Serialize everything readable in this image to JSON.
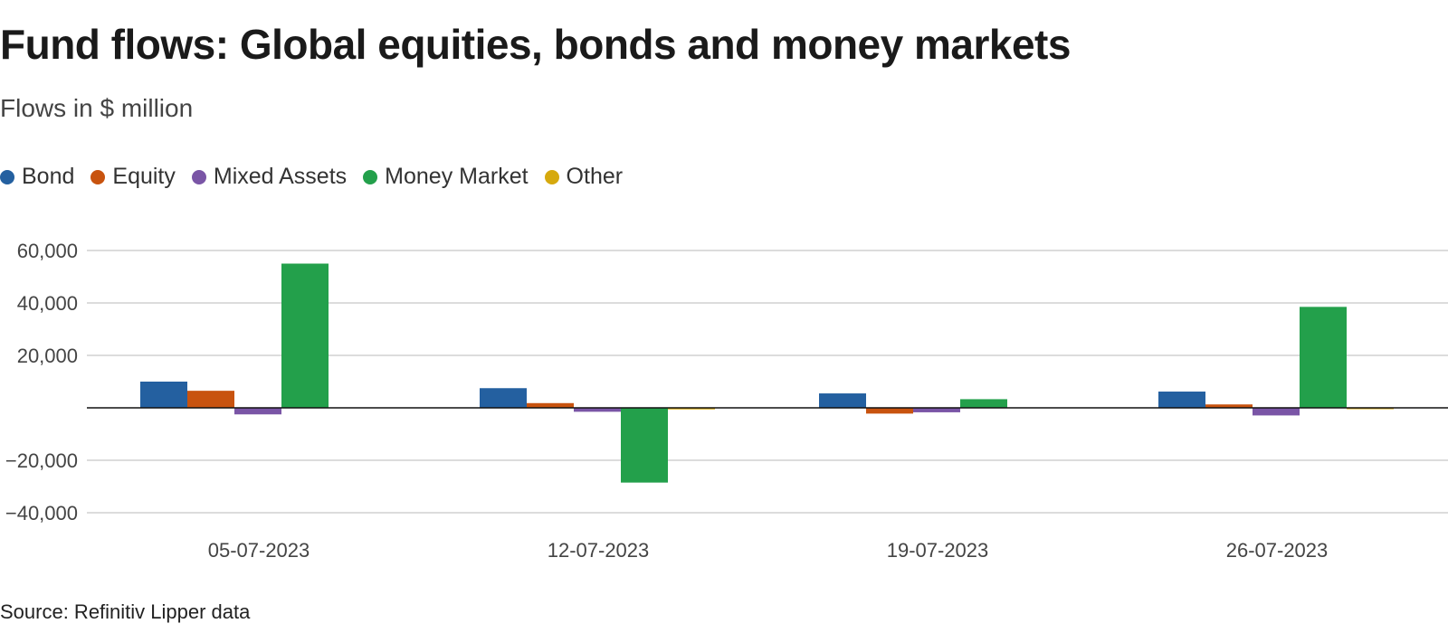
{
  "title": "Fund flows: Global equities, bonds and money markets",
  "subtitle": "Flows in $ million",
  "source": "Source: Refinitiv Lipper data",
  "legend": [
    {
      "name": "Bond",
      "color": "#2460a0"
    },
    {
      "name": "Equity",
      "color": "#c8530f"
    },
    {
      "name": "Mixed Assets",
      "color": "#7a55a6"
    },
    {
      "name": "Money Market",
      "color": "#23a04b"
    },
    {
      "name": "Other",
      "color": "#d6a90e"
    }
  ],
  "chart_data": {
    "type": "bar",
    "categories": [
      "05-07-2023",
      "12-07-2023",
      "19-07-2023",
      "26-07-2023"
    ],
    "series": [
      {
        "name": "Bond",
        "color": "#2460a0",
        "values": [
          10000,
          7500,
          5500,
          6200
        ]
      },
      {
        "name": "Equity",
        "color": "#c8530f",
        "values": [
          6500,
          1800,
          -2200,
          1300
        ]
      },
      {
        "name": "Mixed Assets",
        "color": "#7a55a6",
        "values": [
          -2500,
          -1500,
          -1700,
          -2900
        ]
      },
      {
        "name": "Money Market",
        "color": "#23a04b",
        "values": [
          55000,
          -28500,
          3300,
          38500
        ]
      },
      {
        "name": "Other",
        "color": "#d6a90e",
        "values": [
          0,
          -600,
          0,
          -500
        ]
      }
    ],
    "ylim": [
      -40000,
      60000
    ],
    "yticks": [
      60000,
      40000,
      20000,
      -20000,
      -40000
    ],
    "ytick_labels": [
      "60,000",
      "40,000",
      "20,000",
      "−20,000",
      "−40,000"
    ],
    "grid": true,
    "legend_position": "top-left"
  }
}
